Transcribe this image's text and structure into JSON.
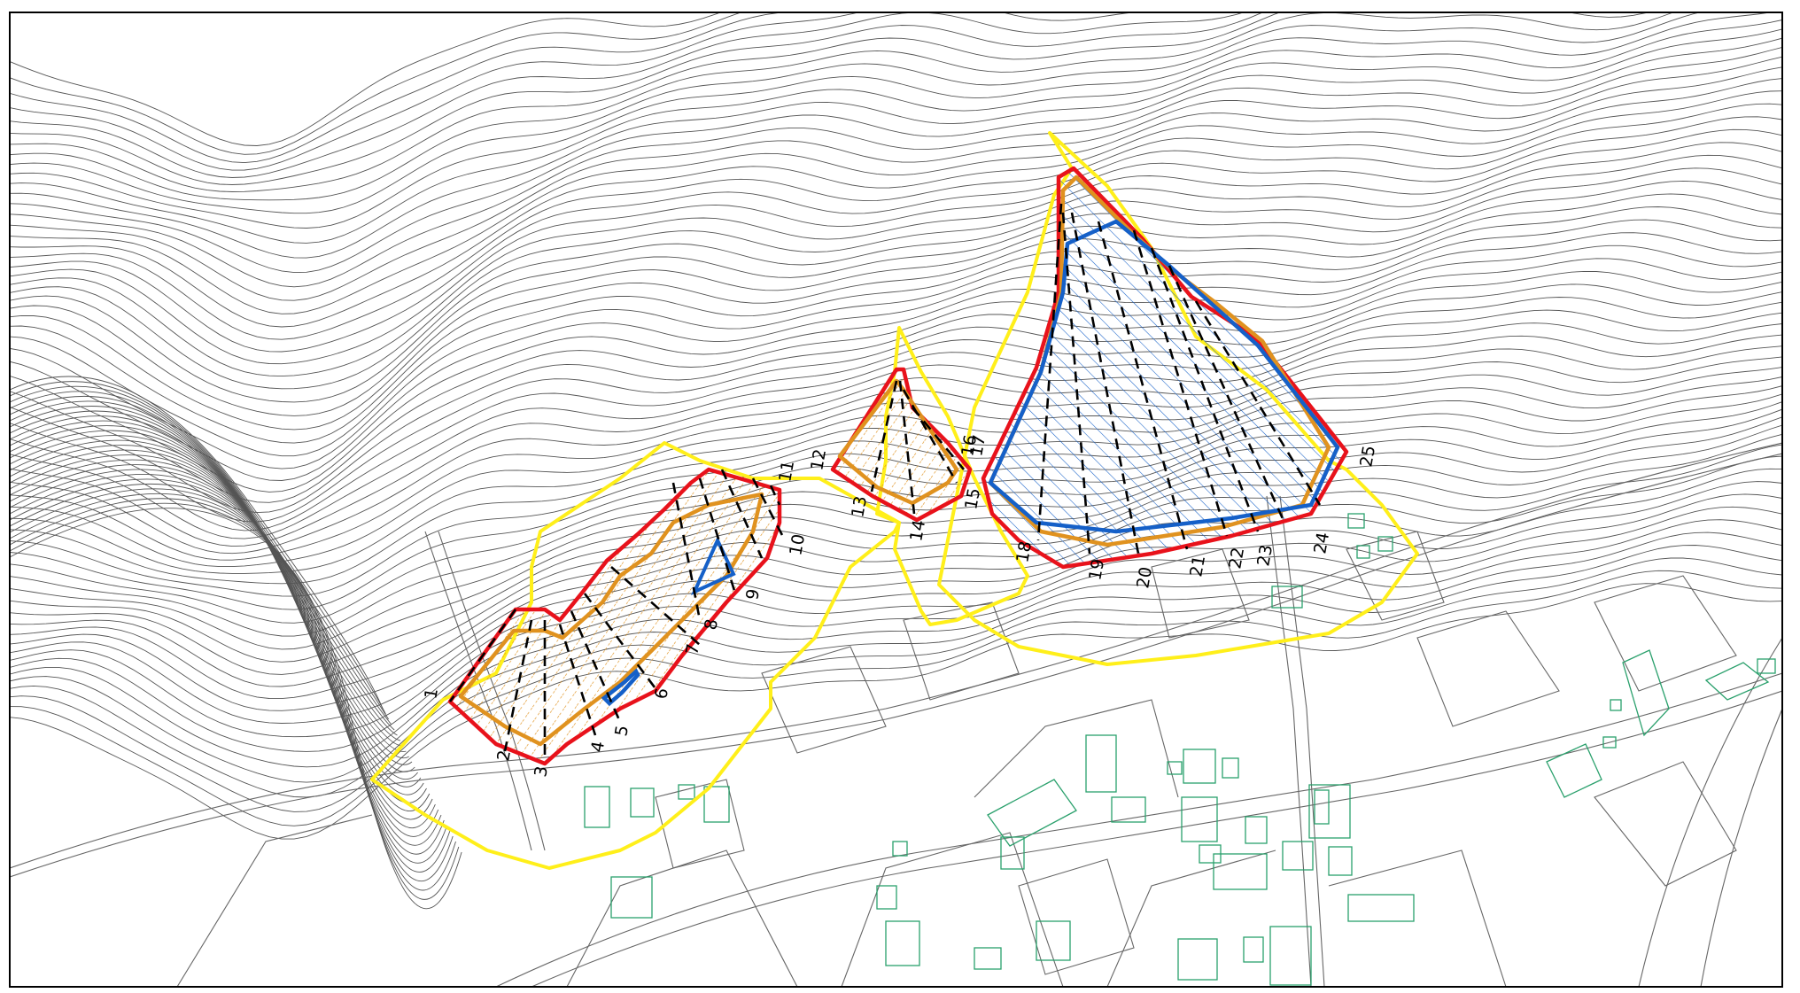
{
  "map": {
    "section_labels": [
      "1",
      "2",
      "3",
      "4",
      "5",
      "6",
      "7",
      "8",
      "9",
      "10",
      "11",
      "12",
      "13",
      "14",
      "15",
      "16",
      "17",
      "18",
      "19",
      "20",
      "21",
      "22",
      "23",
      "24",
      "25"
    ],
    "colors": {
      "contour": "#555555",
      "road": "#666666",
      "building": "#2aa06c",
      "boundary_red": "#e8121b",
      "slope_orange": "#e0921f",
      "danger_blue": "#1560c8",
      "zone_yellow": "#ffef1a",
      "section_line": "#000000",
      "frame": "#000000"
    },
    "icons": [
      "contour-lines",
      "building-outline",
      "section-line"
    ]
  }
}
